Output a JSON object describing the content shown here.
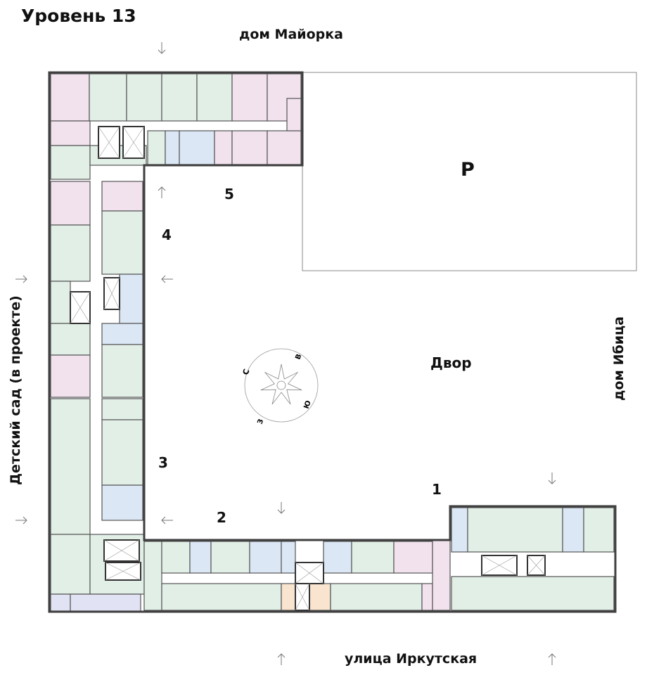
{
  "title": "Уровень 13",
  "labels": {
    "north_neighbor": "дом Майорка",
    "east_neighbor": "дом Ибица",
    "west_neighbor": "Детский сад (в проекте)",
    "street": "улица Иркутская",
    "yard": "Двор",
    "parking": "P"
  },
  "sections": [
    "1",
    "2",
    "3",
    "4",
    "5"
  ],
  "compass": {
    "north": "С",
    "east": "В",
    "south": "Ю",
    "west": "З"
  },
  "colors": {
    "unit_green": "#e2efe7",
    "unit_pink": "#f1e2ee",
    "unit_blue": "#dbe7f5",
    "unit_orange": "#f8e4cf",
    "unit_lavender": "#e1e2f3",
    "wall": "#3f3f3f"
  }
}
